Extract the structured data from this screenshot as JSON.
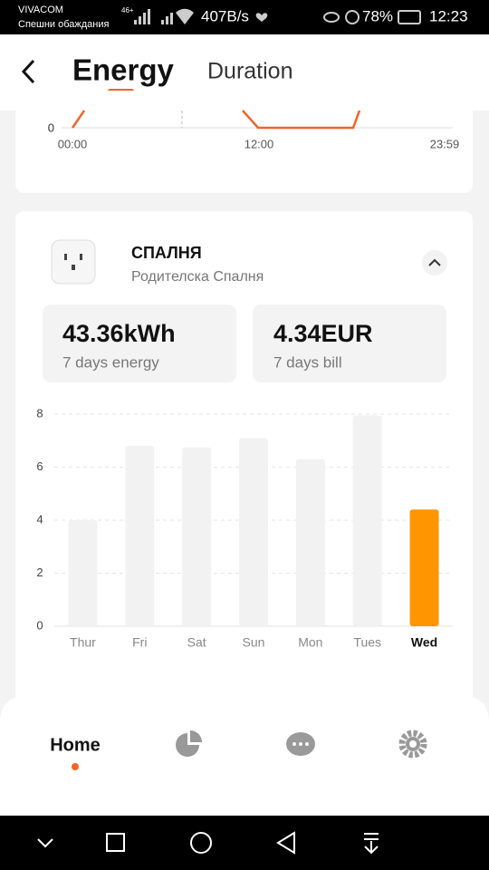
{
  "status_bar": {
    "carrier": "VIVACOM",
    "carrier_note": "Спешни обаждания",
    "network": "46+",
    "speed": "407B/s",
    "battery": "78%",
    "time": "12:23"
  },
  "header": {
    "tabs": [
      "Energy",
      "Duration"
    ]
  },
  "top_chart": {
    "x_labels": [
      "00:00",
      "12:00",
      "23:59"
    ],
    "y_label": "0"
  },
  "device": {
    "name": "СПАЛНЯ",
    "room": "Родителска Спалня",
    "stats": [
      {
        "value": "43.36kWh",
        "label": "7 days energy"
      },
      {
        "value": "4.34EUR",
        "label": "7 days bill"
      }
    ]
  },
  "chart_data": {
    "type": "bar",
    "categories": [
      "Thur",
      "Fri",
      "Sat",
      "Sun",
      "Mon",
      "Tues",
      "Wed"
    ],
    "values": [
      4.0,
      6.8,
      6.75,
      7.1,
      6.3,
      7.95,
      4.4
    ],
    "color": "#f2f2f2",
    "highlight_color": "#ff9500",
    "highlight_index": 6,
    "ylim": [
      0,
      8
    ],
    "yticks": [
      0,
      2,
      4,
      6,
      8
    ],
    "grid": true
  },
  "nav": {
    "home": "Home"
  }
}
